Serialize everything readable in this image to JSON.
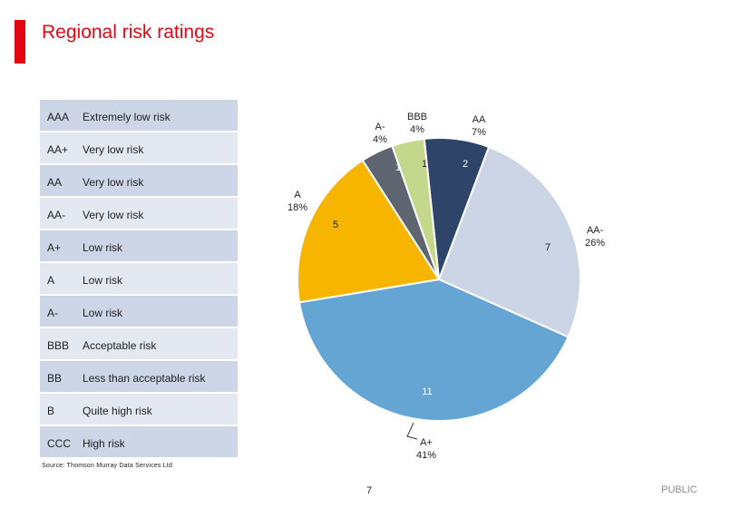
{
  "header": {
    "title": "Regional risk ratings"
  },
  "ratings_table": [
    {
      "code": "AAA",
      "description": "Extremely low risk"
    },
    {
      "code": "AA+",
      "description": "Very low risk"
    },
    {
      "code": "AA",
      "description": "Very low risk"
    },
    {
      "code": "AA-",
      "description": "Very low risk"
    },
    {
      "code": "A+",
      "description": "Low risk"
    },
    {
      "code": "A",
      "description": "Low risk"
    },
    {
      "code": "A-",
      "description": "Low risk"
    },
    {
      "code": "BBB",
      "description": "Acceptable risk"
    },
    {
      "code": "BB",
      "description": "Less than acceptable risk"
    },
    {
      "code": "B",
      "description": "Quite high risk"
    },
    {
      "code": "CCC",
      "description": "High risk"
    }
  ],
  "footer": {
    "source": "Source: Thomson Murray Data Services Ltd",
    "page_number": "7",
    "classification": "PUBLIC"
  },
  "colors": {
    "accent": "#e30613"
  },
  "chart_data": {
    "type": "pie",
    "title": "",
    "slices": [
      {
        "label": "AA",
        "percent": "7%",
        "value": 2,
        "color": "#2e4468"
      },
      {
        "label": "AA-",
        "percent": "26%",
        "value": 7,
        "color": "#cbd5e6"
      },
      {
        "label": "A+",
        "percent": "41%",
        "value": 11,
        "color": "#64a5d4"
      },
      {
        "label": "A",
        "percent": "18%",
        "value": 5,
        "color": "#f7b500"
      },
      {
        "label": "A-",
        "percent": "4%",
        "value": 1,
        "color": "#5e6470"
      },
      {
        "label": "BBB",
        "percent": "4%",
        "value": 1,
        "color": "#c4d88c"
      }
    ]
  }
}
